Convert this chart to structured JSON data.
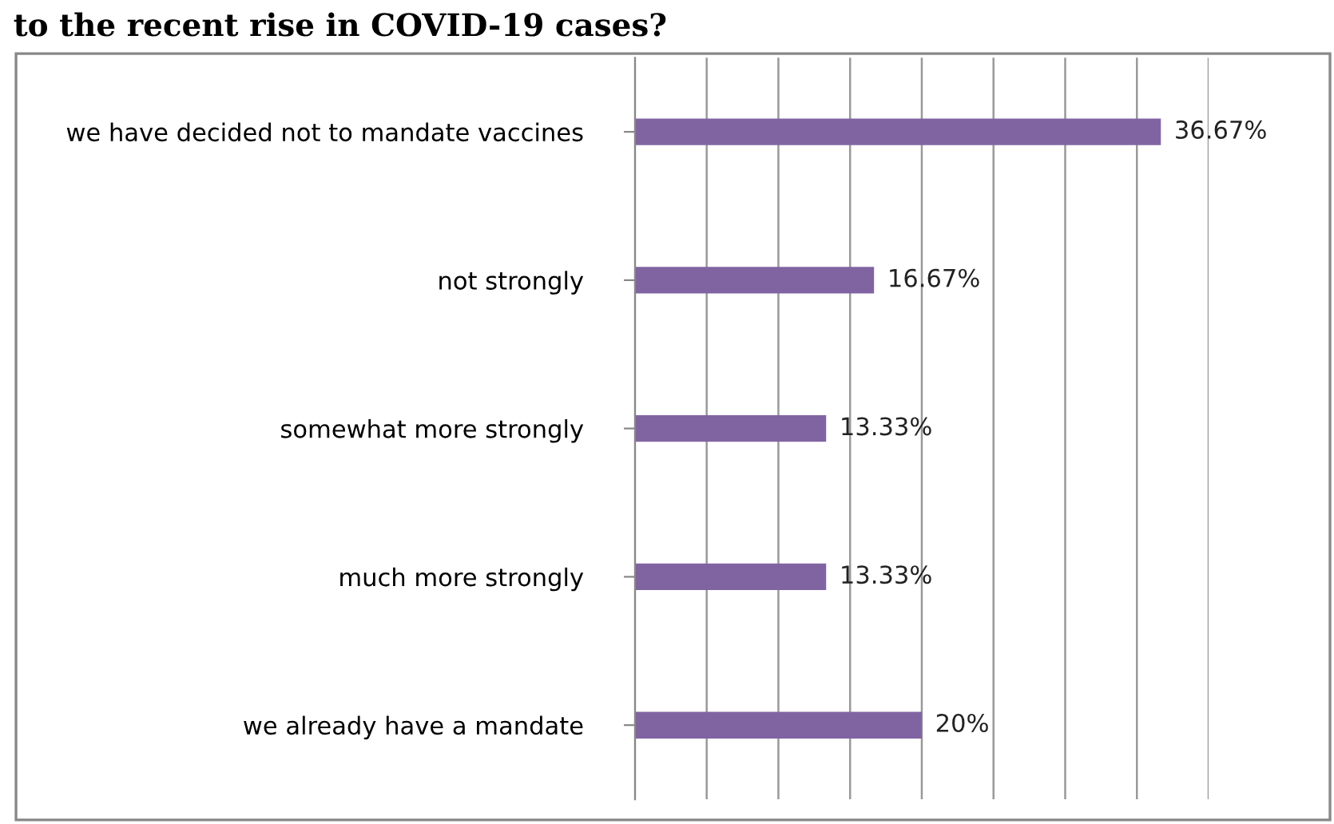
{
  "chart_data": {
    "type": "bar",
    "orientation": "horizontal",
    "title": "to the recent rise in COVID-19 cases?",
    "categories": [
      "we have decided not to mandate vaccines",
      "not strongly",
      "somewhat more strongly",
      "much more strongly",
      "we already have a mandate"
    ],
    "values": [
      36.67,
      16.67,
      13.33,
      13.33,
      20
    ],
    "value_labels": [
      "36.67%",
      "16.67%",
      "13.33%",
      "13.33%",
      "20%"
    ],
    "color": "#8064a2",
    "xlim": [
      0,
      40
    ],
    "xticks": [
      {
        "value": 0,
        "label": null
      },
      {
        "value": 5,
        "label": null
      },
      {
        "value": 10,
        "label": null
      },
      {
        "value": 15,
        "label": null
      },
      {
        "value": 20,
        "label": null
      },
      {
        "value": 25,
        "label": null
      },
      {
        "value": 30,
        "label": null
      },
      {
        "value": 35,
        "label": null
      },
      {
        "value": 40,
        "label": null
      }
    ],
    "grid": "x",
    "legend": false
  }
}
